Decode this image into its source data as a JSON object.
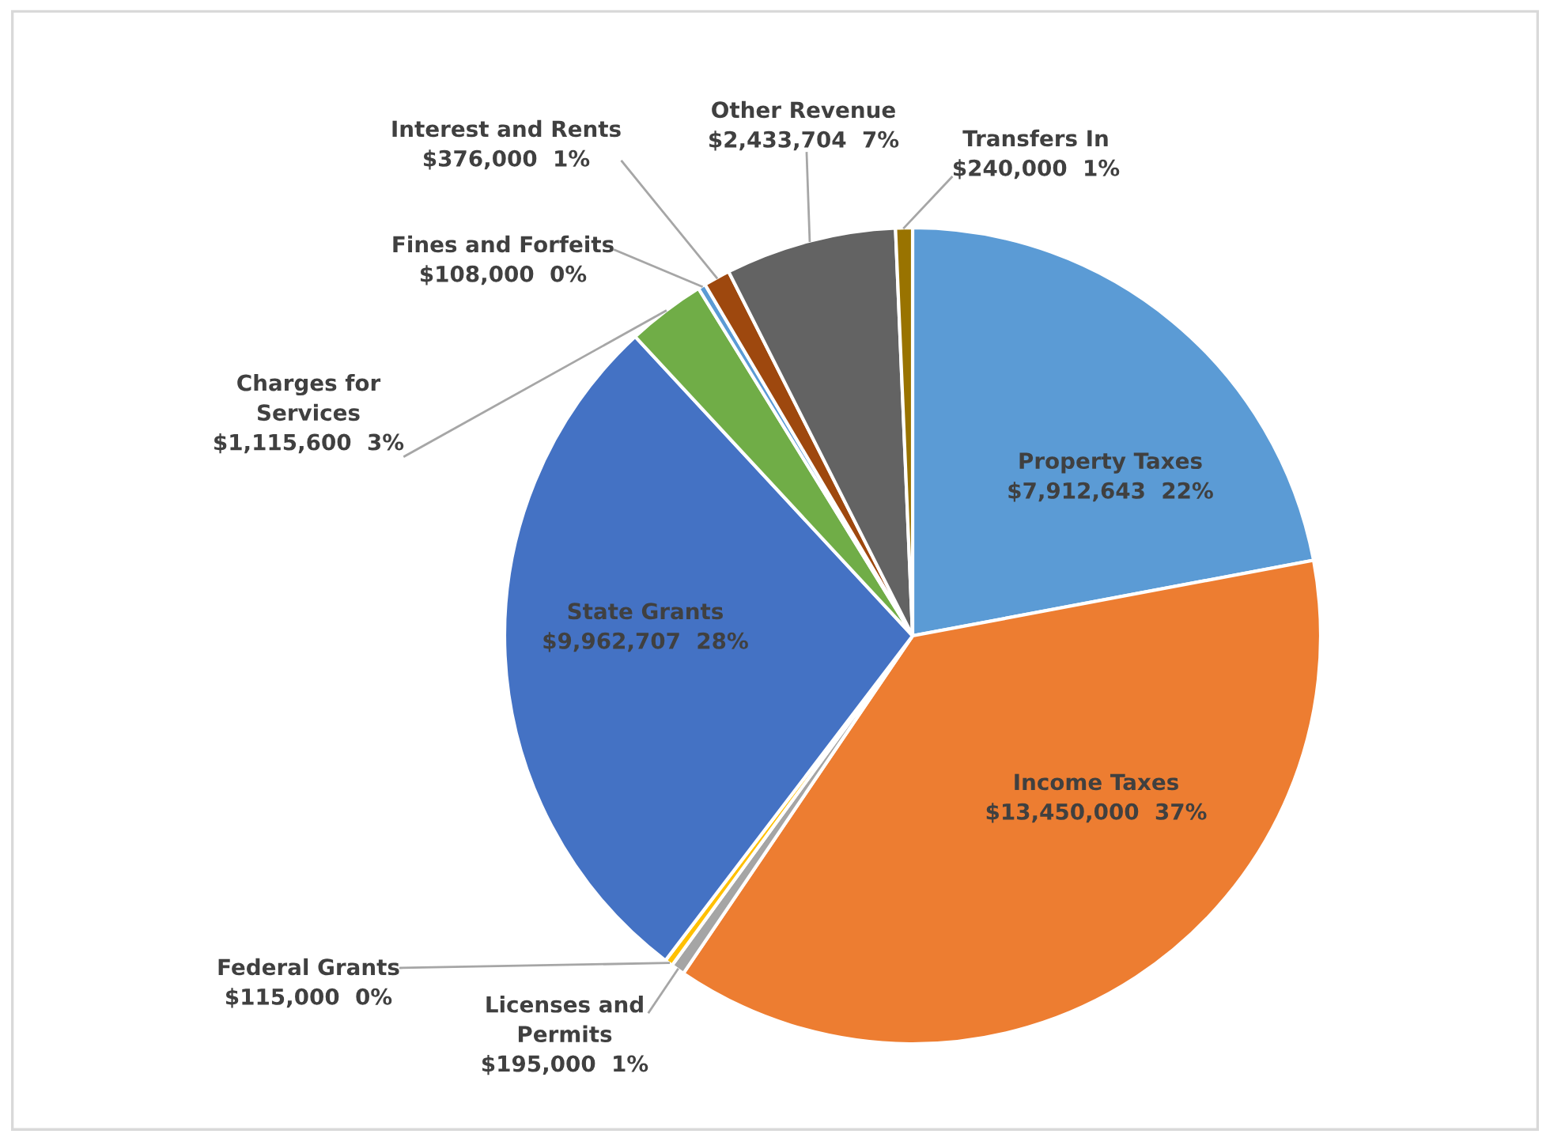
{
  "chart_data": {
    "type": "pie",
    "categories": [
      "Property Taxes",
      "Income Taxes",
      "Licenses and Permits",
      "Federal Grants",
      "State Grants",
      "Charges for Services",
      "Fines and Forfeits",
      "Interest and Rents",
      "Other Revenue",
      "Transfers In"
    ],
    "values": [
      7912643,
      13450000,
      195000,
      115000,
      9962707,
      1115600,
      108000,
      376000,
      2433704,
      240000
    ],
    "colors": [
      "#5b9bd5",
      "#ed7d31",
      "#a5a5a5",
      "#ffc000",
      "#4472c4",
      "#70ad47",
      "#5b9bd5",
      "#9e480e",
      "#636363",
      "#997300"
    ],
    "value_labels": [
      "$7,912,643  22%",
      "$13,450,000  37%",
      "$195,000  1%",
      "$115,000  0%",
      "$9,962,707  28%",
      "$1,115,600  3%",
      "$108,000  0%",
      "$376,000  1%",
      "$2,433,704  7%",
      "$240,000  1%"
    ],
    "legend": false
  }
}
